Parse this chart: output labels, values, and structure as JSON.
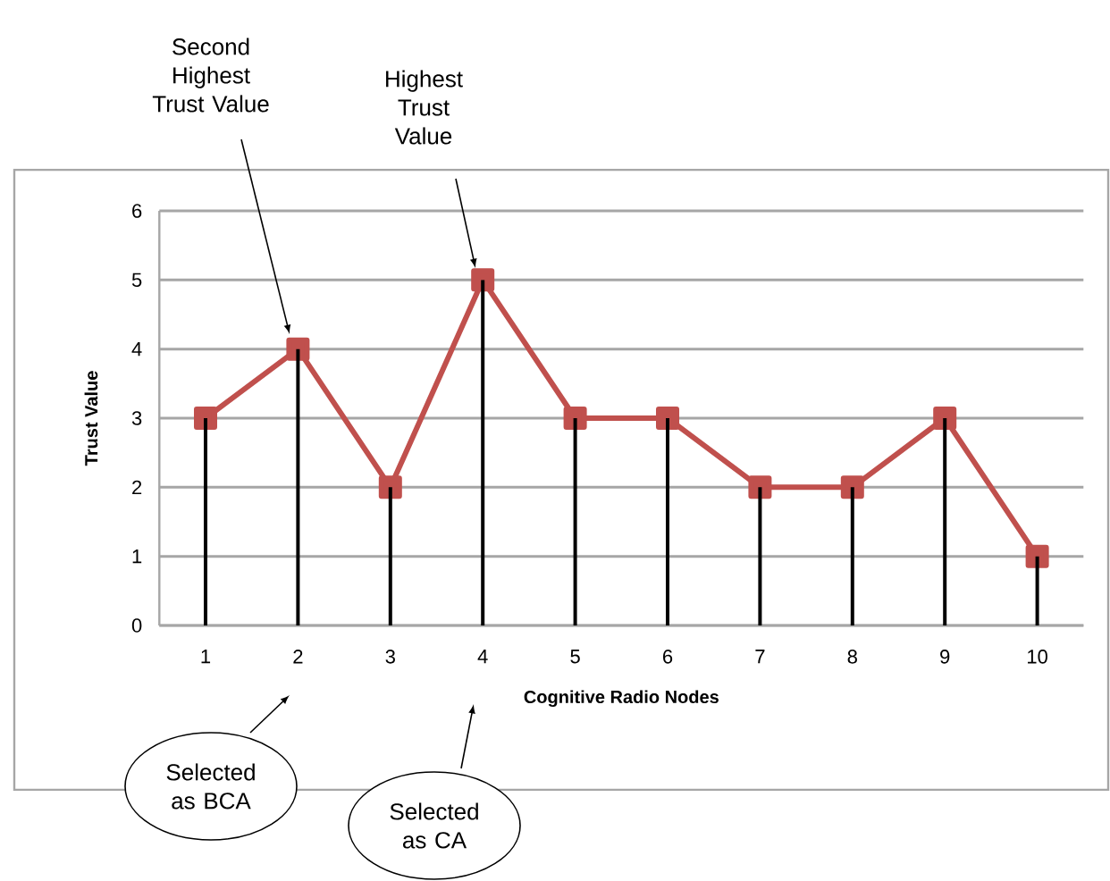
{
  "chart_data": {
    "type": "line",
    "xlabel": "Cognitive Radio Nodes",
    "ylabel": "Trust Value",
    "categories": [
      "1",
      "2",
      "3",
      "4",
      "5",
      "6",
      "7",
      "8",
      "9",
      "10"
    ],
    "series": [
      {
        "type": "bar",
        "color": "#000000",
        "values": [
          3,
          4,
          2,
          5,
          3,
          3,
          2,
          2,
          3,
          1
        ]
      },
      {
        "color": "#c0504d",
        "values": [
          3,
          4,
          2,
          5,
          3,
          3,
          2,
          2,
          3,
          1
        ]
      }
    ],
    "ylim": [
      0,
      6
    ],
    "yticks": [
      0,
      1,
      2,
      3,
      4,
      5,
      6
    ],
    "grid": "y",
    "marker": "square",
    "line_style": "solid",
    "annotations": [
      "Second Highest Trust Value",
      "Highest Trust Value",
      "Selected as BCA",
      "Selected as CA"
    ]
  }
}
